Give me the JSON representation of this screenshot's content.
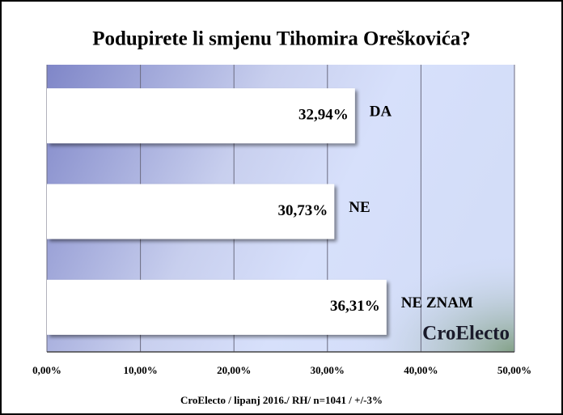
{
  "chart_data": {
    "type": "bar",
    "orientation": "horizontal",
    "title": "Podupirete li smjenu Tihomira Oreškovića?",
    "categories": [
      "DA",
      "NE",
      "NE ZNAM"
    ],
    "values": [
      32.94,
      30.73,
      36.31
    ],
    "value_labels": [
      "32,94%",
      "30,73%",
      "36,31%"
    ],
    "color": "#ffffff",
    "xlim": [
      0,
      50
    ],
    "xticks": [
      {
        "value": 0,
        "label": "0,00%"
      },
      {
        "value": 10,
        "label": "10,00%"
      },
      {
        "value": 20,
        "label": "20,00%"
      },
      {
        "value": 30,
        "label": "30,00%"
      },
      {
        "value": 40,
        "label": "40,00%"
      },
      {
        "value": 50,
        "label": "50,00%"
      }
    ],
    "grid": true,
    "watermark": "CroElecto",
    "footer": "CroElecto / lipanj 2016./ RH/ n=1041 / +/-3%"
  }
}
